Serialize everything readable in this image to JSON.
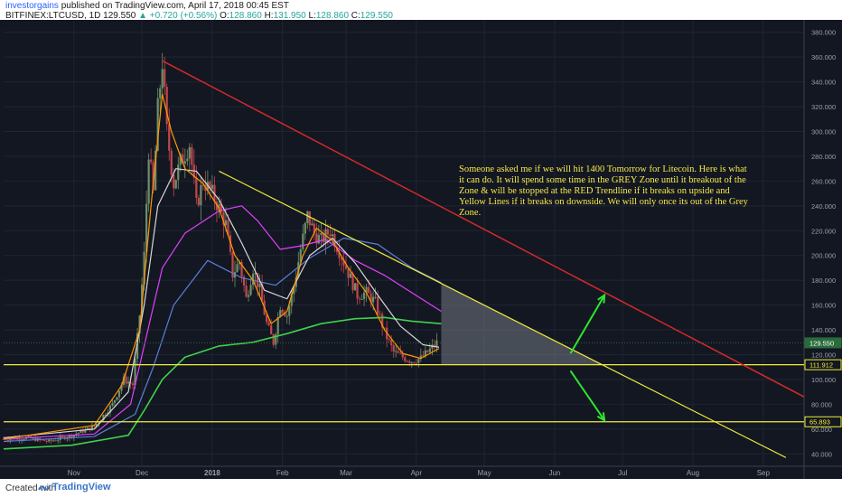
{
  "header": {
    "author": "investorgains",
    "published": "published on TradingView.com, April 17, 2018 00:45 EST",
    "symbol": "BITFINEX:LTCUSD, 1D",
    "last": "129.550",
    "change_arrow": "▲",
    "change": "+0.720 (+0.56%)",
    "ohlc": {
      "o_label": "O:",
      "o": "128.860",
      "h_label": "H:",
      "h": "131.950",
      "l_label": "L:",
      "l": "128.860",
      "c_label": "C:",
      "c": "129.550"
    }
  },
  "footer": {
    "created": "Created with",
    "brand": "TradingView"
  },
  "annotation": "Someone asked me if we will hit 1400 Tomorrow for Litecoin. Here is what it can do. It will spend some time in the GREY Zone until it breakout of the Zone & will be stopped at the RED Trendline if it breaks on upside and Yellow Lines if it breaks on downside. We will only once its out of the Grey Zone.",
  "colors": {
    "background": "#131722",
    "candle_up": "#6f8f6a",
    "candle_down": "#c2474c",
    "red_trendline": "#d42a2a",
    "yellow_line": "#f1ee3b",
    "green_arrow": "#2ee52e",
    "ma_fast": "#ff9800",
    "ma_white": "#d8d8d8",
    "ma_magenta": "#e040fb",
    "ma_blue": "#5b7fd8",
    "ma_green": "#3fd14a",
    "grey_zone": "#8a8f9a"
  },
  "chart_data": {
    "type": "candlestick",
    "y_unit": "USD",
    "ylim": [
      30,
      390
    ],
    "y_ticks": [
      40,
      60,
      80,
      100,
      120,
      140,
      160,
      180,
      200,
      220,
      240,
      260,
      280,
      300,
      320,
      340,
      360,
      380
    ],
    "y_tick_labels": [
      "40.000",
      "60.000",
      "80.000",
      "100.000",
      "120.000",
      "140.000",
      "160.000",
      "180.000",
      "200.000",
      "220.000",
      "240.000",
      "260.000",
      "280.000",
      "300.000",
      "320.000",
      "340.000",
      "360.000",
      "380.000"
    ],
    "x_labels": [
      "Nov",
      "Dec",
      "2018",
      "Feb",
      "Mar",
      "Apr",
      "May",
      "Jun",
      "Jul",
      "Aug",
      "Sep"
    ],
    "x_label_days": [
      31,
      61,
      92,
      123,
      151,
      182,
      212,
      243,
      273,
      304,
      335
    ],
    "x_range_days": [
      0,
      353
    ],
    "price_labels": [
      {
        "value": 129.55,
        "text": "129.550",
        "color": "#2a6b3c"
      },
      {
        "value": 111.912,
        "text": "111.912",
        "color": "#f1ee3b"
      },
      {
        "value": 65.893,
        "text": "65.893",
        "color": "#f1ee3b"
      }
    ],
    "horizontal_lines": [
      111.912,
      65.893
    ],
    "red_trendline": {
      "from": [
        70,
        357
      ],
      "to": [
        353,
        86
      ]
    },
    "yellow_trendline": {
      "from": [
        95,
        268
      ],
      "to": [
        345,
        37
      ]
    },
    "grey_zone": {
      "left_day": 193,
      "top": 175,
      "bottom": 111.912
    },
    "arrows": [
      {
        "from": [
          250,
          121
        ],
        "to": [
          265,
          168
        ]
      },
      {
        "from": [
          250,
          107
        ],
        "to": [
          265,
          67
        ]
      }
    ],
    "ohlc_keypoints": [
      [
        0,
        52
      ],
      [
        10,
        53
      ],
      [
        20,
        50
      ],
      [
        30,
        55
      ],
      [
        40,
        62
      ],
      [
        48,
        80
      ],
      [
        53,
        100
      ],
      [
        57,
        96
      ],
      [
        60,
        152
      ],
      [
        62,
        200
      ],
      [
        64,
        285
      ],
      [
        66,
        250
      ],
      [
        68,
        318
      ],
      [
        70,
        356
      ],
      [
        72,
        300
      ],
      [
        75,
        258
      ],
      [
        78,
        275
      ],
      [
        82,
        290
      ],
      [
        85,
        240
      ],
      [
        88,
        260
      ],
      [
        92,
        250
      ],
      [
        95,
        238
      ],
      [
        98,
        225
      ],
      [
        101,
        185
      ],
      [
        104,
        195
      ],
      [
        107,
        165
      ],
      [
        110,
        190
      ],
      [
        113,
        172
      ],
      [
        116,
        145
      ],
      [
        119,
        130
      ],
      [
        122,
        160
      ],
      [
        125,
        152
      ],
      [
        128,
        175
      ],
      [
        131,
        205
      ],
      [
        134,
        232
      ],
      [
        137,
        218
      ],
      [
        140,
        212
      ],
      [
        144,
        220
      ],
      [
        148,
        204
      ],
      [
        152,
        186
      ],
      [
        156,
        168
      ],
      [
        160,
        170
      ],
      [
        164,
        162
      ],
      [
        168,
        138
      ],
      [
        172,
        122
      ],
      [
        176,
        118
      ],
      [
        180,
        115
      ],
      [
        184,
        117
      ],
      [
        188,
        124
      ],
      [
        191,
        129.55
      ]
    ],
    "moving_averages": [
      {
        "name": "ma_green",
        "points": [
          [
            0,
            44
          ],
          [
            30,
            47
          ],
          [
            55,
            55
          ],
          [
            62,
            75
          ],
          [
            70,
            100
          ],
          [
            80,
            118
          ],
          [
            95,
            127
          ],
          [
            110,
            130
          ],
          [
            125,
            137
          ],
          [
            140,
            145
          ],
          [
            155,
            149
          ],
          [
            168,
            150
          ],
          [
            180,
            147
          ],
          [
            193,
            145
          ]
        ]
      },
      {
        "name": "ma_blue",
        "points": [
          [
            0,
            50
          ],
          [
            40,
            54
          ],
          [
            58,
            72
          ],
          [
            66,
            110
          ],
          [
            75,
            160
          ],
          [
            90,
            196
          ],
          [
            105,
            182
          ],
          [
            120,
            176
          ],
          [
            135,
            198
          ],
          [
            150,
            214
          ],
          [
            165,
            209
          ],
          [
            180,
            190
          ],
          [
            193,
            178
          ]
        ]
      },
      {
        "name": "ma_magenta",
        "points": [
          [
            0,
            52
          ],
          [
            40,
            56
          ],
          [
            56,
            80
          ],
          [
            63,
            135
          ],
          [
            70,
            190
          ],
          [
            80,
            218
          ],
          [
            95,
            236
          ],
          [
            105,
            240
          ],
          [
            112,
            228
          ],
          [
            122,
            205
          ],
          [
            132,
            208
          ],
          [
            142,
            213
          ],
          [
            155,
            196
          ],
          [
            168,
            184
          ],
          [
            180,
            170
          ],
          [
            193,
            155
          ]
        ]
      },
      {
        "name": "ma_white",
        "points": [
          [
            0,
            53
          ],
          [
            40,
            60
          ],
          [
            55,
            90
          ],
          [
            62,
            160
          ],
          [
            68,
            240
          ],
          [
            76,
            270
          ],
          [
            85,
            268
          ],
          [
            95,
            245
          ],
          [
            105,
            210
          ],
          [
            115,
            172
          ],
          [
            125,
            165
          ],
          [
            135,
            200
          ],
          [
            145,
            214
          ],
          [
            155,
            194
          ],
          [
            165,
            168
          ],
          [
            175,
            143
          ],
          [
            185,
            128
          ],
          [
            192,
            126
          ]
        ]
      },
      {
        "name": "ma_fast",
        "points": [
          [
            0,
            52
          ],
          [
            40,
            63
          ],
          [
            52,
            95
          ],
          [
            60,
            140
          ],
          [
            65,
            240
          ],
          [
            70,
            330
          ],
          [
            74,
            300
          ],
          [
            80,
            270
          ],
          [
            88,
            258
          ],
          [
            95,
            238
          ],
          [
            102,
            200
          ],
          [
            110,
            180
          ],
          [
            118,
            145
          ],
          [
            125,
            155
          ],
          [
            132,
            200
          ],
          [
            138,
            222
          ],
          [
            145,
            212
          ],
          [
            152,
            190
          ],
          [
            160,
            170
          ],
          [
            168,
            140
          ],
          [
            176,
            121
          ],
          [
            184,
            117
          ],
          [
            192,
            125
          ]
        ]
      }
    ]
  }
}
